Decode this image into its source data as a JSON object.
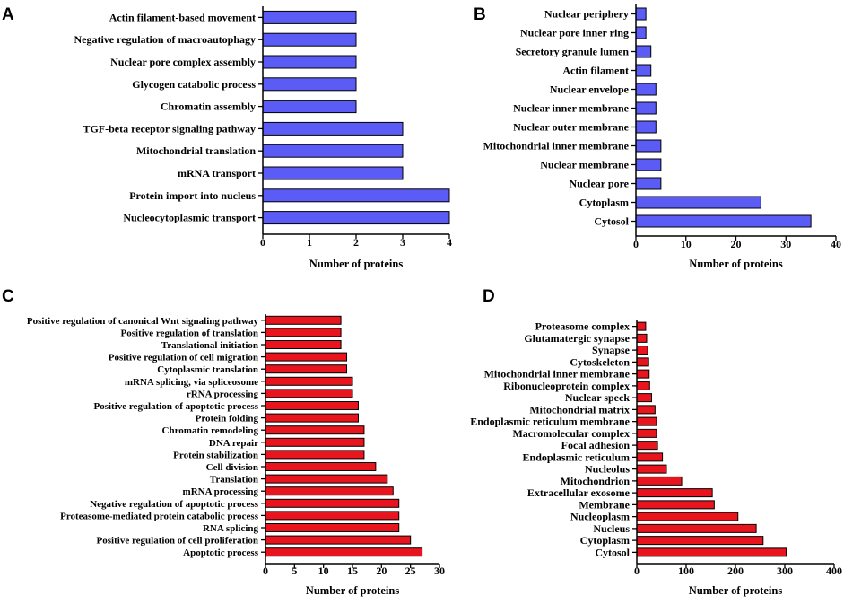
{
  "chart_data": [
    {
      "panel": "A",
      "type": "bar",
      "orientation": "horizontal",
      "color": "#5b5bf5",
      "categories": [
        "Actin filament-based movement",
        "Negative regulation of macroautophagy",
        "Nuclear pore complex assembly",
        "Glycogen catabolic process",
        "Chromatin assembly",
        "TGF-beta receptor signaling pathway",
        "Mitochondrial translation",
        "mRNA transport",
        "Protein import into nucleus",
        "Nucleocytoplasmic transport"
      ],
      "values": [
        2,
        2,
        2,
        2,
        2,
        3,
        3,
        3,
        4,
        4
      ],
      "xlabel": "Number of proteins",
      "xlim": [
        0,
        4
      ],
      "ticks": [
        0,
        1,
        2,
        3,
        4
      ]
    },
    {
      "panel": "B",
      "type": "bar",
      "orientation": "horizontal",
      "color": "#5b5bf5",
      "categories": [
        "Nuclear periphery",
        "Nuclear pore inner ring",
        "Secretory granule lumen",
        "Actin filament",
        "Nuclear envelope",
        "Nuclear inner membrane",
        "Nuclear outer membrane",
        "Mitochondrial inner membrane",
        "Nuclear membrane",
        "Nuclear pore",
        "Cytoplasm",
        "Cytosol"
      ],
      "values": [
        2,
        2,
        3,
        3,
        4,
        4,
        4,
        5,
        5,
        5,
        25,
        35
      ],
      "xlabel": "Number of proteins",
      "xlim": [
        0,
        40
      ],
      "ticks": [
        0,
        10,
        20,
        30,
        40
      ]
    },
    {
      "panel": "C",
      "type": "bar",
      "orientation": "horizontal",
      "color": "#e8141e",
      "categories": [
        "Positive regulation of canonical Wnt signaling pathway",
        "Positive regulation of translation",
        "Translational initiation",
        "Positive regulation of cell migration",
        "Cytoplasmic translation",
        "mRNA splicing, via spliceosome",
        "rRNA processing",
        "Positive regulation of apoptotic process",
        "Protein folding",
        "Chromatin remodeling",
        "DNA repair",
        "Protein stabilization",
        "Cell division",
        "Translation",
        "mRNA processing",
        "Negative regulation of apoptotic process",
        "Proteasome-mediated protein catabolic process",
        "RNA splicing",
        "Positive regulation of cell proliferation",
        "Apoptotic process"
      ],
      "values": [
        13,
        13,
        13,
        14,
        14,
        15,
        15,
        16,
        16,
        17,
        17,
        17,
        19,
        21,
        22,
        23,
        23,
        23,
        25,
        27
      ],
      "xlabel": "Number of proteins",
      "xlim": [
        0,
        30
      ],
      "ticks": [
        0,
        5,
        10,
        15,
        20,
        25,
        30
      ]
    },
    {
      "panel": "D",
      "type": "bar",
      "orientation": "horizontal",
      "color": "#e8141e",
      "categories": [
        "Proteasome complex",
        "Glutamatergic synapse",
        "Synapse",
        "Cytoskeleton",
        "Mitochondrial inner membrane",
        "Ribonucleoprotein complex",
        "Nuclear speck",
        "Mitochondrial matrix",
        "Endoplasmic reticulum membrane",
        "Macromolecular complex",
        "Focal adhesion",
        "Endoplasmic reticulum",
        "Nucleolus",
        "Mitochondrion",
        "Extracellular exosome",
        "Membrane",
        "Nucleoplasm",
        "Nucleus",
        "Cytoplasm",
        "Cytosol"
      ],
      "values": [
        18,
        20,
        22,
        24,
        25,
        26,
        30,
        37,
        40,
        40,
        42,
        52,
        60,
        91,
        153,
        157,
        205,
        242,
        256,
        303
      ],
      "xlabel": "Number of proteins",
      "xlim": [
        0,
        400
      ],
      "ticks": [
        0,
        100,
        200,
        300,
        400
      ]
    }
  ]
}
